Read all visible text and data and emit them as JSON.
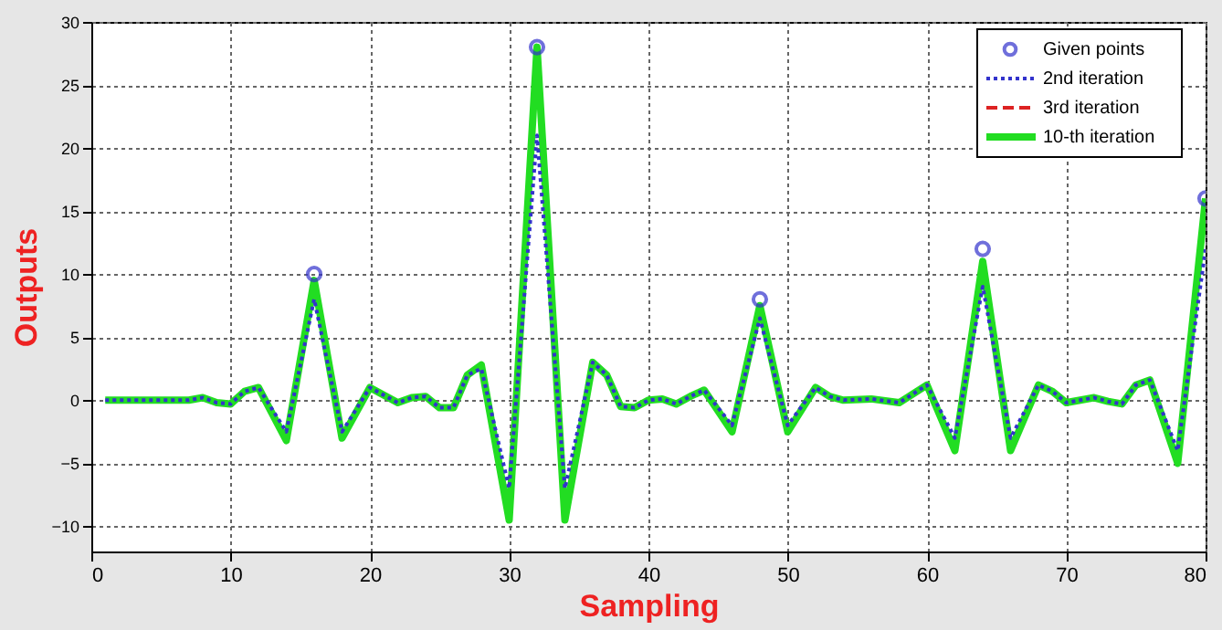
{
  "chart_data": {
    "type": "line",
    "xlabel": "Sampling",
    "ylabel": "Outputs",
    "xlim": [
      0,
      80
    ],
    "ylim": [
      -12,
      30
    ],
    "xticks": [
      0,
      10,
      20,
      30,
      40,
      50,
      60,
      70,
      80
    ],
    "yticks": [
      -10,
      -5,
      0,
      5,
      10,
      15,
      20,
      25,
      30
    ],
    "grid": true,
    "legend": "top right",
    "series": [
      {
        "name": "Given points",
        "type": "scatter",
        "marker": "circle",
        "color": "#3333cc",
        "x": [
          16,
          32,
          48,
          64,
          80
        ],
        "values": [
          10,
          28,
          8,
          12,
          16
        ]
      },
      {
        "name": "2nd iteration",
        "line_style": "dotted",
        "color": "#3333cc",
        "x": [
          1,
          7,
          8,
          9,
          10,
          11,
          12,
          14,
          16,
          18,
          20,
          22,
          23,
          24,
          25,
          26,
          27,
          28,
          30,
          32,
          34,
          36,
          37,
          38,
          39,
          40,
          41,
          42,
          43,
          44,
          46,
          48,
          50,
          52,
          53,
          54,
          56,
          58,
          59,
          60,
          62,
          64,
          66,
          68,
          69,
          70,
          72,
          73,
          74,
          75,
          76,
          78,
          80
        ],
        "values": [
          0,
          0,
          0.2,
          -0.2,
          -0.3,
          0.7,
          1,
          -2.5,
          8,
          -2.5,
          1,
          -0.2,
          0.2,
          0.3,
          -0.6,
          -0.6,
          2,
          2.5,
          -7,
          21,
          -7,
          3,
          2,
          -0.5,
          -0.6,
          0,
          0.1,
          -0.3,
          0.3,
          0.8,
          -2,
          6.5,
          -2,
          1,
          0.3,
          0,
          0.1,
          -0.2,
          0.5,
          1.2,
          -3,
          9,
          -3,
          1.2,
          0.7,
          -0.2,
          0.2,
          -0.1,
          -0.3,
          1.2,
          1.6,
          -4,
          12
        ]
      },
      {
        "name": "3rd iteration",
        "type": "line",
        "line_style": "dashed",
        "color": "#dd2222"
      },
      {
        "name": "10-th iteration",
        "line_style": "solid",
        "color": "#22dd22",
        "x": [
          1,
          7,
          8,
          9,
          10,
          11,
          12,
          14,
          16,
          18,
          20,
          22,
          23,
          24,
          25,
          26,
          27,
          28,
          30,
          32,
          34,
          36,
          37,
          38,
          39,
          40,
          41,
          42,
          43,
          44,
          46,
          48,
          50,
          52,
          53,
          54,
          56,
          58,
          59,
          60,
          62,
          64,
          66,
          68,
          69,
          70,
          72,
          73,
          74,
          75,
          76,
          78,
          80
        ],
        "values": [
          0,
          0,
          0.2,
          -0.2,
          -0.3,
          0.7,
          1,
          -3.2,
          9.5,
          -3,
          1,
          -0.2,
          0.2,
          0.3,
          -0.6,
          -0.6,
          2,
          2.8,
          -9.5,
          28,
          -9.5,
          3,
          2,
          -0.5,
          -0.6,
          0,
          0.1,
          -0.3,
          0.3,
          0.8,
          -2.5,
          7.5,
          -2.5,
          1,
          0.3,
          0,
          0.1,
          -0.2,
          0.5,
          1.2,
          -4,
          11,
          -4,
          1.2,
          0.7,
          -0.2,
          0.2,
          -0.1,
          -0.3,
          1.2,
          1.6,
          -5,
          16
        ]
      }
    ]
  }
}
